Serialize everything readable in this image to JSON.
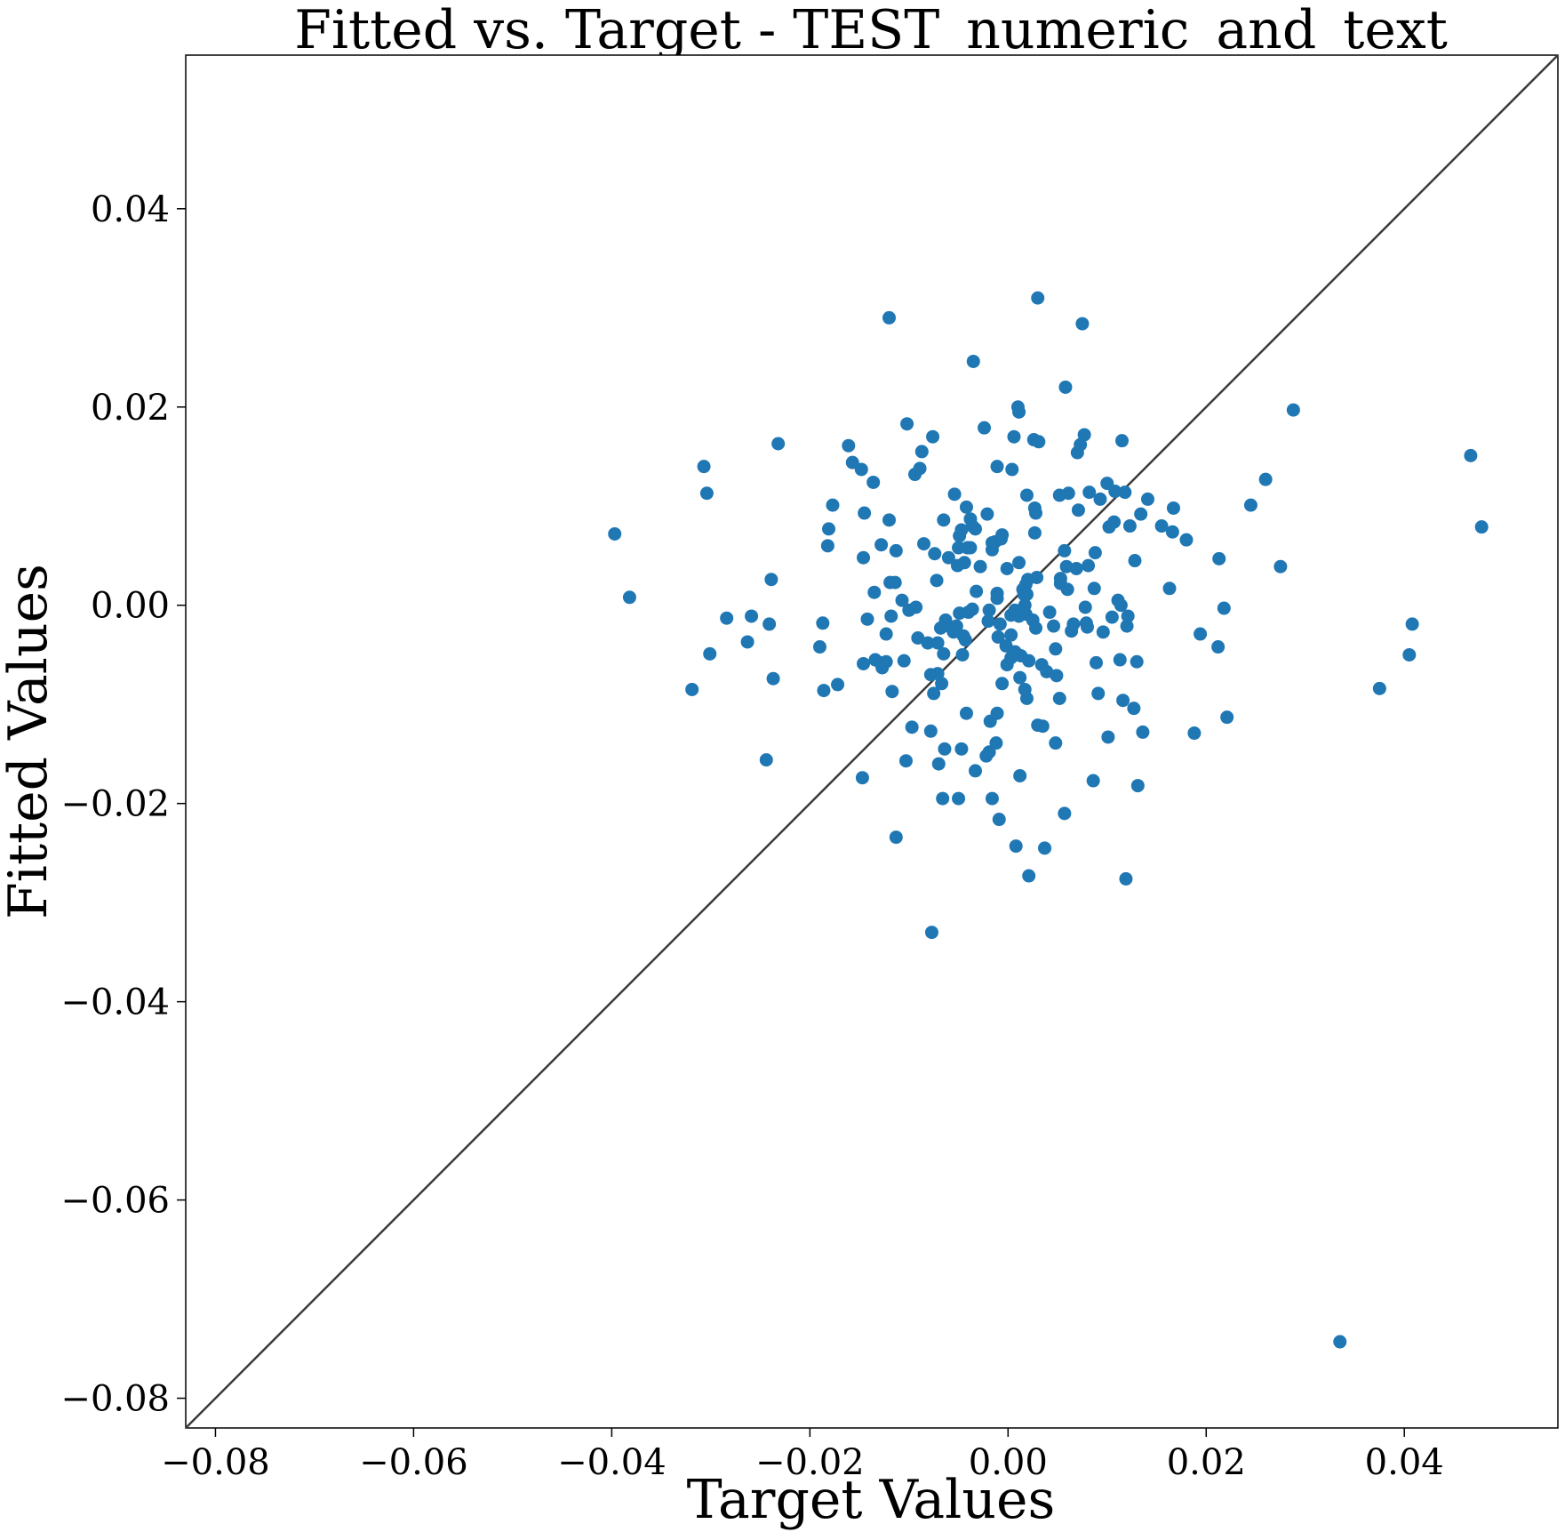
{
  "chart_data": {
    "type": "scatter",
    "title": "Fitted vs. Target - TEST_numeric_and_text",
    "xlabel": "Target Values",
    "ylabel": "Fitted Values",
    "xlim": [
      -0.083,
      0.0555
    ],
    "ylim": [
      -0.083,
      0.0555
    ],
    "xticks": [
      -0.08,
      -0.06,
      -0.04,
      -0.02,
      0.0,
      0.02,
      0.04
    ],
    "xtick_labels": [
      "−0.08",
      "−0.06",
      "−0.04",
      "−0.02",
      "0.00",
      "0.02",
      "0.04"
    ],
    "yticks": [
      -0.08,
      -0.06,
      -0.04,
      -0.02,
      0.0,
      0.02,
      0.04
    ],
    "ytick_labels": [
      "−0.08",
      "−0.06",
      "−0.04",
      "−0.02",
      "0.00",
      "0.02",
      "0.04"
    ],
    "grid": false,
    "reference_line": "y = x",
    "colors": {
      "points": "#1f77b4",
      "line": "#3a3a3a"
    },
    "points": [
      [
        -0.0397,
        0.0072
      ],
      [
        -0.0382,
        0.0008
      ],
      [
        -0.0319,
        -0.0085
      ],
      [
        -0.0307,
        0.014
      ],
      [
        -0.0304,
        0.0113
      ],
      [
        -0.0301,
        -0.0049
      ],
      [
        -0.0284,
        -0.0013
      ],
      [
        -0.0263,
        -0.0037
      ],
      [
        -0.0259,
        -0.0011
      ],
      [
        -0.0244,
        -0.0156
      ],
      [
        -0.0241,
        -0.0019
      ],
      [
        -0.0239,
        0.0026
      ],
      [
        -0.0237,
        -0.0074
      ],
      [
        -0.0232,
        0.0163
      ],
      [
        -0.019,
        -0.0042
      ],
      [
        -0.0187,
        -0.0018
      ],
      [
        -0.0186,
        -0.0086
      ],
      [
        -0.0182,
        0.006
      ],
      [
        -0.0181,
        0.0077
      ],
      [
        -0.0177,
        0.0101
      ],
      [
        -0.0172,
        -0.008
      ],
      [
        -0.0161,
        0.0161
      ],
      [
        -0.0157,
        0.0144
      ],
      [
        -0.0148,
        0.0137
      ],
      [
        -0.0147,
        -0.0174
      ],
      [
        -0.0146,
        -0.0059
      ],
      [
        -0.0146,
        0.0048
      ],
      [
        -0.0145,
        0.0093
      ],
      [
        -0.0142,
        -0.0014
      ],
      [
        -0.0136,
        0.0124
      ],
      [
        -0.0135,
        0.0013
      ],
      [
        -0.0134,
        -0.0055
      ],
      [
        -0.0129,
        -0.0058
      ],
      [
        -0.0128,
        0.0061
      ],
      [
        -0.0127,
        -0.0063
      ],
      [
        -0.0123,
        -0.0057
      ],
      [
        -0.0123,
        -0.0029
      ],
      [
        -0.012,
        0.029
      ],
      [
        -0.012,
        0.0086
      ],
      [
        -0.0119,
        0.0023
      ],
      [
        -0.0118,
        -0.0011
      ],
      [
        -0.0117,
        -0.0087
      ],
      [
        -0.0114,
        0.0023
      ],
      [
        -0.0113,
        0.0055
      ],
      [
        -0.0113,
        -0.0234
      ],
      [
        -0.0107,
        0.0005
      ],
      [
        -0.0105,
        -0.0056
      ],
      [
        -0.0103,
        -0.0157
      ],
      [
        -0.0102,
        0.0183
      ],
      [
        -0.01,
        -0.0005
      ],
      [
        -0.0097,
        -0.0123
      ],
      [
        -0.0094,
        0.0132
      ],
      [
        -0.0093,
        -0.0002
      ],
      [
        -0.0091,
        -0.0033
      ],
      [
        -0.0089,
        0.0138
      ],
      [
        -0.0087,
        0.0155
      ],
      [
        -0.0085,
        0.0062
      ],
      [
        -0.0081,
        -0.0038
      ],
      [
        -0.0078,
        -0.0127
      ],
      [
        -0.0078,
        -0.007
      ],
      [
        -0.0077,
        -0.033
      ],
      [
        -0.0076,
        0.017
      ],
      [
        -0.0075,
        -0.0089
      ],
      [
        -0.0074,
        0.0052
      ],
      [
        -0.0072,
        0.0025
      ],
      [
        -0.0071,
        -0.0069
      ],
      [
        -0.0071,
        -0.0038
      ],
      [
        -0.007,
        -0.016
      ],
      [
        -0.0068,
        -0.0023
      ],
      [
        -0.0067,
        -0.0079
      ],
      [
        -0.0066,
        -0.0195
      ],
      [
        -0.0065,
        -0.0049
      ],
      [
        -0.0065,
        0.0086
      ],
      [
        -0.0064,
        -0.0145
      ],
      [
        -0.0063,
        -0.0015
      ],
      [
        -0.006,
        0.0048
      ],
      [
        -0.0057,
        -0.0023
      ],
      [
        -0.0055,
        -0.0027
      ],
      [
        -0.0054,
        0.0112
      ],
      [
        -0.0052,
        -0.0021
      ],
      [
        -0.0051,
        0.004
      ],
      [
        -0.005,
        0.0058
      ],
      [
        -0.005,
        -0.0195
      ],
      [
        -0.0049,
        0.007
      ],
      [
        -0.0049,
        -0.0008
      ],
      [
        -0.0047,
        0.0076
      ],
      [
        -0.0047,
        -0.0145
      ],
      [
        -0.0046,
        -0.005
      ],
      [
        -0.0045,
        -0.0031
      ],
      [
        -0.0044,
        0.0043
      ],
      [
        -0.0043,
        -0.0035
      ],
      [
        -0.0042,
        -0.0109
      ],
      [
        -0.0042,
        0.0099
      ],
      [
        -0.0041,
        0.0058
      ],
      [
        -0.004,
        -0.0007
      ],
      [
        -0.0038,
        0.0058
      ],
      [
        -0.0038,
        0.0087
      ],
      [
        -0.0036,
        0.008
      ],
      [
        -0.0036,
        -0.0004
      ],
      [
        -0.0035,
        0.0246
      ],
      [
        -0.0033,
        0.0077
      ],
      [
        -0.0033,
        -0.0167
      ],
      [
        -0.0032,
        0.0014
      ],
      [
        -0.0028,
        0.0039
      ],
      [
        -0.0024,
        0.0179
      ],
      [
        -0.0022,
        -0.0152
      ],
      [
        -0.0021,
        0.0092
      ],
      [
        -0.002,
        -0.0016
      ],
      [
        -0.0019,
        -0.0148
      ],
      [
        -0.0019,
        -0.0005
      ],
      [
        -0.0018,
        -0.0117
      ],
      [
        -0.0016,
        0.0063
      ],
      [
        -0.0016,
        -0.0195
      ],
      [
        -0.0016,
        0.0056
      ],
      [
        -0.0013,
        0.0064
      ],
      [
        -0.0012,
        -0.0139
      ],
      [
        -0.0011,
        0.014
      ],
      [
        -0.0011,
        -0.0109
      ],
      [
        -0.0011,
        0.0012
      ],
      [
        -0.0011,
        0.0007
      ],
      [
        -0.001,
        -0.0032
      ],
      [
        -0.0009,
        -0.0216
      ],
      [
        -0.0008,
        -0.0019
      ],
      [
        -0.0007,
        0.0067
      ],
      [
        -0.0006,
        -0.0079
      ],
      [
        -0.0006,
        0.0071
      ],
      [
        -0.0002,
        -0.0041
      ],
      [
        -0.0001,
        0.0037
      ],
      [
        -0.0001,
        -0.006
      ],
      [
        0.0003,
        -0.0053
      ],
      [
        0.0003,
        -0.001
      ],
      [
        0.0003,
        -0.003
      ],
      [
        0.0004,
        0.0137
      ],
      [
        0.0006,
        0.017
      ],
      [
        0.0007,
        -0.0005
      ],
      [
        0.0007,
        -0.0047
      ],
      [
        0.0008,
        -0.0243
      ],
      [
        0.001,
        0.02
      ],
      [
        0.001,
        -0.005
      ],
      [
        0.0011,
        0.0195
      ],
      [
        0.0011,
        0.0043
      ],
      [
        0.0011,
        -0.0011
      ],
      [
        0.0012,
        -0.0172
      ],
      [
        0.0012,
        -0.0073
      ],
      [
        0.0013,
        -0.0051
      ],
      [
        0.0015,
        0.0016
      ],
      [
        0.0016,
        0.0011
      ],
      [
        0.0017,
        -0.0085
      ],
      [
        0.0017,
        0.0
      ],
      [
        0.0018,
        -0.0009
      ],
      [
        0.0018,
        0.0021
      ],
      [
        0.0019,
        -0.0094
      ],
      [
        0.0019,
        0.0011
      ],
      [
        0.0019,
        0.0111
      ],
      [
        0.002,
        0.0026
      ],
      [
        0.0021,
        -0.0056
      ],
      [
        0.0021,
        -0.0273
      ],
      [
        0.0025,
        -0.0015
      ],
      [
        0.0026,
        0.0167
      ],
      [
        0.0027,
        0.0098
      ],
      [
        0.0027,
        0.0073
      ],
      [
        0.0028,
        -0.0023
      ],
      [
        0.0028,
        0.0093
      ],
      [
        0.0029,
        0.0028
      ],
      [
        0.003,
        0.031
      ],
      [
        0.003,
        -0.0121
      ],
      [
        0.0031,
        0.0165
      ],
      [
        0.0034,
        -0.006
      ],
      [
        0.0035,
        -0.0122
      ],
      [
        0.0037,
        -0.0245
      ],
      [
        0.0039,
        -0.0067
      ],
      [
        0.0042,
        -0.0007
      ],
      [
        0.0046,
        -0.0021
      ],
      [
        0.0048,
        -0.0139
      ],
      [
        0.0048,
        -0.0044
      ],
      [
        0.0049,
        -0.0071
      ],
      [
        0.0052,
        0.0111
      ],
      [
        0.0052,
        -0.0094
      ],
      [
        0.0053,
        0.0022
      ],
      [
        0.0053,
        0.0027
      ],
      [
        0.0057,
        0.0055
      ],
      [
        0.0057,
        -0.021
      ],
      [
        0.0058,
        0.022
      ],
      [
        0.0059,
        0.0039
      ],
      [
        0.006,
        0.0016
      ],
      [
        0.0061,
        0.0113
      ],
      [
        0.0064,
        -0.0026
      ],
      [
        0.0066,
        -0.0019
      ],
      [
        0.0069,
        0.0037
      ],
      [
        0.007,
        0.0154
      ],
      [
        0.0071,
        0.0096
      ],
      [
        0.0073,
        0.0162
      ],
      [
        0.0075,
        0.0284
      ],
      [
        0.0077,
        0.0172
      ],
      [
        0.0078,
        -0.0002
      ],
      [
        0.0079,
        -0.0018
      ],
      [
        0.008,
        -0.0022
      ],
      [
        0.0081,
        0.004
      ],
      [
        0.0082,
        0.0114
      ],
      [
        0.0086,
        -0.0177
      ],
      [
        0.0087,
        0.0017
      ],
      [
        0.0088,
        0.0053
      ],
      [
        0.0089,
        -0.0058
      ],
      [
        0.0091,
        -0.0089
      ],
      [
        0.0093,
        0.0107
      ],
      [
        0.0096,
        -0.0027
      ],
      [
        0.01,
        0.0123
      ],
      [
        0.0101,
        -0.0133
      ],
      [
        0.0102,
        0.0079
      ],
      [
        0.0105,
        -0.0012
      ],
      [
        0.0107,
        0.0084
      ],
      [
        0.0108,
        0.0115
      ],
      [
        0.0111,
        0.0005
      ],
      [
        0.0113,
        -0.0055
      ],
      [
        0.0114,
        0.0
      ],
      [
        0.0115,
        0.0166
      ],
      [
        0.0116,
        -0.0096
      ],
      [
        0.0118,
        0.0114
      ],
      [
        0.0119,
        -0.0276
      ],
      [
        0.012,
        -0.0021
      ],
      [
        0.0121,
        -0.0011
      ],
      [
        0.0123,
        0.008
      ],
      [
        0.0127,
        -0.0104
      ],
      [
        0.0128,
        0.0045
      ],
      [
        0.013,
        -0.0057
      ],
      [
        0.0131,
        -0.0182
      ],
      [
        0.0134,
        0.0092
      ],
      [
        0.0136,
        -0.0128
      ],
      [
        0.0141,
        0.0107
      ],
      [
        0.0155,
        0.008
      ],
      [
        0.0163,
        0.0017
      ],
      [
        0.0166,
        0.0074
      ],
      [
        0.0167,
        0.0098
      ],
      [
        0.018,
        0.0066
      ],
      [
        0.0188,
        -0.0129
      ],
      [
        0.0194,
        -0.0029
      ],
      [
        0.0212,
        -0.0042
      ],
      [
        0.0213,
        0.0047
      ],
      [
        0.0218,
        -0.0003
      ],
      [
        0.0221,
        -0.0113
      ],
      [
        0.0245,
        0.0101
      ],
      [
        0.026,
        0.0127
      ],
      [
        0.0275,
        0.0039
      ],
      [
        0.0288,
        0.0197
      ],
      [
        0.0335,
        -0.0743
      ],
      [
        0.0375,
        -0.0084
      ],
      [
        0.0405,
        -0.005
      ],
      [
        0.0408,
        -0.0019
      ],
      [
        0.0467,
        0.0151
      ],
      [
        0.0478,
        0.0079
      ]
    ]
  }
}
